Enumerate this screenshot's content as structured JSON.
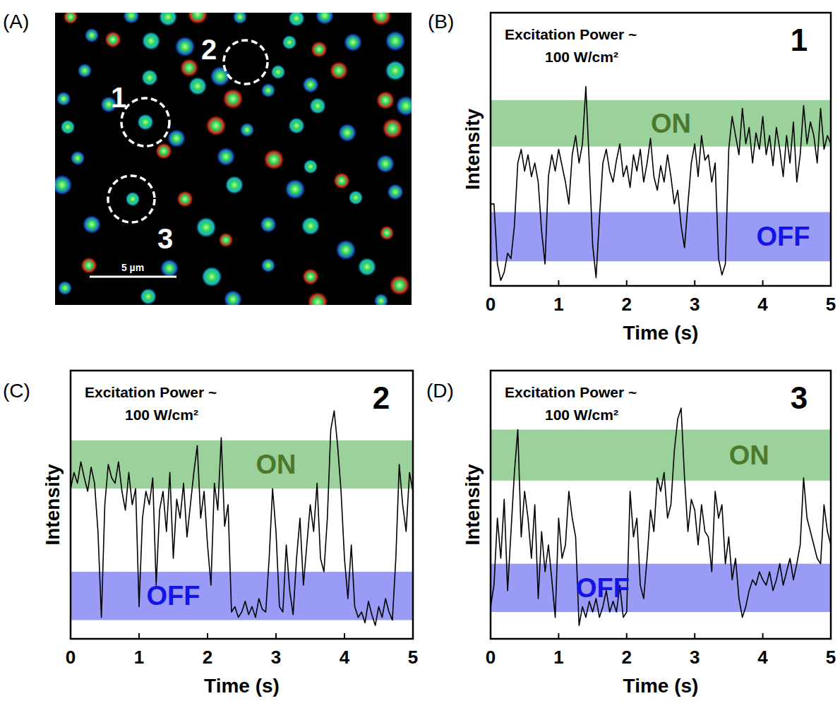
{
  "chart_data": [
    {
      "type": "image",
      "panel_label": "(A)",
      "annotations": [
        "1",
        "2",
        "3"
      ],
      "scale_bar": "5 µm"
    },
    {
      "type": "line",
      "panel_label": "(B)",
      "title": "1",
      "annotations": [
        "Excitation Power ~",
        "100  W/cm²"
      ],
      "xlabel": "Time (s)",
      "ylabel": "Intensity",
      "xlim": [
        0,
        5
      ],
      "ylim": [
        0,
        100
      ],
      "xticks": [
        0,
        1,
        2,
        3,
        4,
        5
      ],
      "tick_labels": "x",
      "color": "#000000",
      "bands": [
        {
          "name": "ON",
          "range": [
            51,
            68
          ],
          "color": "#9bd19b"
        },
        {
          "name": "OFF",
          "range": [
            9,
            27
          ],
          "color": "#9a9af7"
        }
      ],
      "x": [
        0,
        0.05,
        0.1,
        0.15,
        0.2,
        0.25,
        0.3,
        0.35,
        0.4,
        0.45,
        0.5,
        0.55,
        0.6,
        0.65,
        0.7,
        0.75,
        0.8,
        0.85,
        0.9,
        0.95,
        1,
        1.05,
        1.1,
        1.15,
        1.2,
        1.25,
        1.3,
        1.35,
        1.4,
        1.45,
        1.5,
        1.55,
        1.6,
        1.65,
        1.7,
        1.75,
        1.8,
        1.85,
        1.9,
        1.95,
        2,
        2.05,
        2.1,
        2.15,
        2.2,
        2.25,
        2.3,
        2.35,
        2.4,
        2.45,
        2.5,
        2.55,
        2.6,
        2.65,
        2.7,
        2.75,
        2.8,
        2.85,
        2.9,
        2.95,
        3,
        3.05,
        3.1,
        3.15,
        3.2,
        3.25,
        3.3,
        3.35,
        3.4,
        3.45,
        3.5,
        3.55,
        3.6,
        3.65,
        3.7,
        3.75,
        3.8,
        3.85,
        3.9,
        3.95,
        4,
        4.05,
        4.1,
        4.15,
        4.2,
        4.25,
        4.3,
        4.35,
        4.4,
        4.45,
        4.5,
        4.55,
        4.6,
        4.65,
        4.7,
        4.75,
        4.8,
        4.85,
        4.9,
        4.95,
        5
      ],
      "values": [
        30,
        30,
        8,
        2,
        5,
        12,
        10,
        22,
        45,
        50,
        42,
        48,
        40,
        45,
        38,
        20,
        8,
        40,
        48,
        42,
        50,
        44,
        38,
        30,
        48,
        55,
        45,
        52,
        73,
        45,
        15,
        3,
        25,
        45,
        50,
        42,
        38,
        46,
        52,
        40,
        44,
        36,
        48,
        42,
        50,
        38,
        45,
        54,
        40,
        35,
        44,
        38,
        48,
        40,
        30,
        35,
        22,
        14,
        30,
        45,
        52,
        40,
        55,
        46,
        48,
        38,
        45,
        10,
        4,
        8,
        50,
        62,
        55,
        48,
        65,
        52,
        58,
        45,
        56,
        50,
        62,
        48,
        55,
        44,
        58,
        50,
        40,
        55,
        45,
        60,
        38,
        48,
        66,
        52,
        60,
        55,
        45,
        65,
        50,
        55,
        52
      ]
    },
    {
      "type": "line",
      "panel_label": "(C)",
      "title": "2",
      "annotations": [
        "Excitation Power ~",
        "100  W/cm²"
      ],
      "xlabel": "Time (s)",
      "ylabel": "Intensity",
      "xlim": [
        0,
        5
      ],
      "ylim": [
        0,
        100
      ],
      "xticks": [
        0,
        1,
        2,
        3,
        4,
        5
      ],
      "tick_labels": "x",
      "color": "#000000",
      "bands": [
        {
          "name": "ON",
          "range": [
            56,
            74
          ],
          "color": "#9bd19b"
        },
        {
          "name": "OFF",
          "range": [
            7,
            25
          ],
          "color": "#9a9af7"
        }
      ],
      "x": [
        0,
        0.05,
        0.1,
        0.15,
        0.2,
        0.25,
        0.3,
        0.35,
        0.4,
        0.45,
        0.5,
        0.55,
        0.6,
        0.65,
        0.7,
        0.75,
        0.8,
        0.85,
        0.9,
        0.95,
        1,
        1.05,
        1.1,
        1.15,
        1.2,
        1.25,
        1.3,
        1.35,
        1.4,
        1.45,
        1.5,
        1.55,
        1.6,
        1.65,
        1.7,
        1.75,
        1.8,
        1.85,
        1.9,
        1.95,
        2,
        2.05,
        2.1,
        2.15,
        2.2,
        2.25,
        2.3,
        2.35,
        2.4,
        2.45,
        2.5,
        2.55,
        2.6,
        2.65,
        2.7,
        2.75,
        2.8,
        2.85,
        2.9,
        2.95,
        3,
        3.05,
        3.1,
        3.15,
        3.2,
        3.25,
        3.3,
        3.35,
        3.4,
        3.45,
        3.5,
        3.55,
        3.6,
        3.65,
        3.7,
        3.75,
        3.8,
        3.85,
        3.9,
        3.95,
        4,
        4.05,
        4.1,
        4.15,
        4.2,
        4.25,
        4.3,
        4.35,
        4.4,
        4.45,
        4.5,
        4.55,
        4.6,
        4.65,
        4.7,
        4.75,
        4.8,
        4.85,
        4.9,
        4.95,
        5
      ],
      "values": [
        56,
        62,
        58,
        66,
        60,
        55,
        64,
        58,
        40,
        8,
        50,
        65,
        60,
        58,
        66,
        55,
        48,
        62,
        50,
        56,
        12,
        45,
        55,
        50,
        60,
        20,
        48,
        55,
        40,
        62,
        30,
        52,
        45,
        58,
        38,
        50,
        62,
        72,
        45,
        55,
        35,
        20,
        58,
        48,
        75,
        42,
        50,
        10,
        12,
        8,
        10,
        14,
        9,
        12,
        8,
        15,
        11,
        10,
        30,
        56,
        40,
        12,
        10,
        35,
        18,
        9,
        30,
        45,
        20,
        35,
        50,
        40,
        58,
        30,
        25,
        45,
        78,
        85,
        72,
        55,
        30,
        15,
        35,
        12,
        8,
        10,
        6,
        14,
        9,
        5,
        12,
        8,
        15,
        10,
        7,
        30,
        65,
        50,
        40,
        62,
        55
      ]
    },
    {
      "type": "line",
      "panel_label": "(D)",
      "title": "3",
      "annotations": [
        "Excitation Power ~",
        "100  W/cm²"
      ],
      "xlabel": "Time (s)",
      "ylabel": "Intensity",
      "xlim": [
        0,
        5
      ],
      "ylim": [
        0,
        100
      ],
      "xticks": [
        0,
        1,
        2,
        3,
        4,
        5
      ],
      "tick_labels": "x",
      "color": "#000000",
      "bands": [
        {
          "name": "ON",
          "range": [
            59,
            78
          ],
          "color": "#9bd19b"
        },
        {
          "name": "OFF",
          "range": [
            10,
            28
          ],
          "color": "#9a9af7"
        }
      ],
      "x": [
        0,
        0.05,
        0.1,
        0.15,
        0.2,
        0.25,
        0.3,
        0.35,
        0.4,
        0.45,
        0.5,
        0.55,
        0.6,
        0.65,
        0.7,
        0.75,
        0.8,
        0.85,
        0.9,
        0.95,
        1,
        1.05,
        1.1,
        1.15,
        1.2,
        1.25,
        1.3,
        1.35,
        1.4,
        1.45,
        1.5,
        1.55,
        1.6,
        1.65,
        1.7,
        1.75,
        1.8,
        1.85,
        1.9,
        1.95,
        2,
        2.05,
        2.1,
        2.15,
        2.2,
        2.25,
        2.3,
        2.35,
        2.4,
        2.45,
        2.5,
        2.55,
        2.6,
        2.65,
        2.7,
        2.75,
        2.8,
        2.85,
        2.9,
        2.95,
        3,
        3.05,
        3.1,
        3.15,
        3.2,
        3.25,
        3.3,
        3.35,
        3.4,
        3.45,
        3.5,
        3.55,
        3.6,
        3.65,
        3.7,
        3.75,
        3.8,
        3.85,
        3.9,
        3.95,
        4,
        4.05,
        4.1,
        4.15,
        4.2,
        4.25,
        4.3,
        4.35,
        4.4,
        4.45,
        4.5,
        4.55,
        4.6,
        4.65,
        4.7,
        4.75,
        4.8,
        4.85,
        4.9,
        4.95,
        5
      ],
      "values": [
        12,
        20,
        45,
        30,
        52,
        18,
        40,
        62,
        78,
        38,
        55,
        45,
        30,
        50,
        15,
        40,
        25,
        35,
        22,
        8,
        45,
        30,
        35,
        55,
        45,
        38,
        5,
        12,
        8,
        14,
        10,
        15,
        8,
        12,
        18,
        10,
        14,
        10,
        20,
        8,
        10,
        55,
        38,
        45,
        20,
        15,
        30,
        48,
        40,
        60,
        55,
        62,
        45,
        50,
        70,
        82,
        86,
        60,
        40,
        52,
        48,
        35,
        50,
        40,
        38,
        25,
        55,
        45,
        50,
        28,
        38,
        22,
        30,
        15,
        8,
        12,
        18,
        22,
        20,
        25,
        22,
        20,
        25,
        18,
        22,
        28,
        20,
        25,
        30,
        22,
        28,
        35,
        60,
        45,
        40,
        35,
        30,
        28,
        50,
        40,
        35
      ]
    }
  ]
}
